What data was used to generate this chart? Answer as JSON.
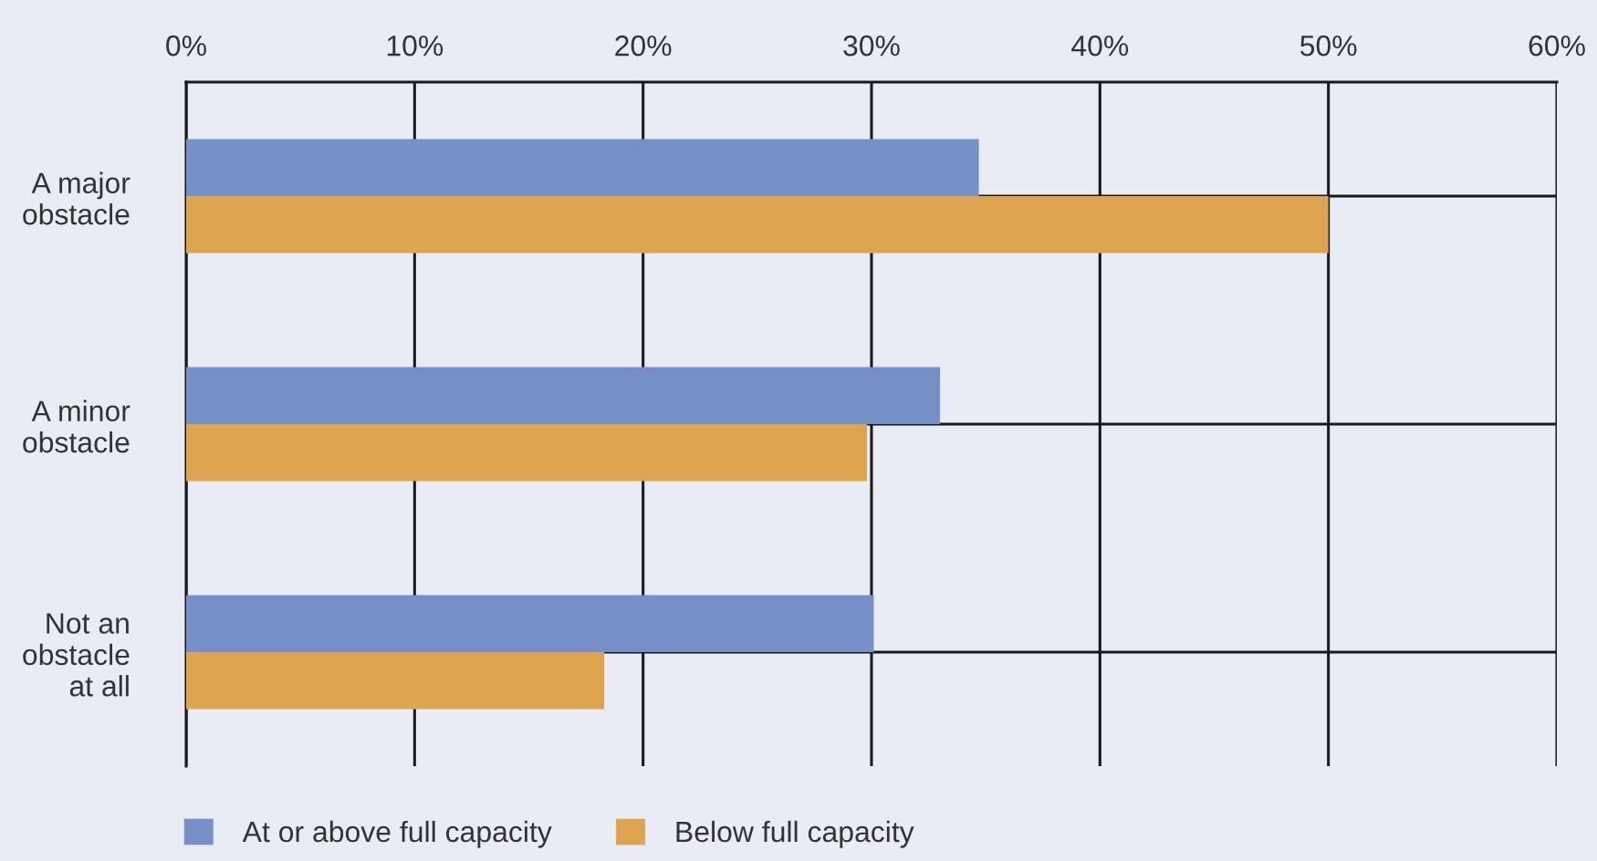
{
  "chart_data": {
    "type": "bar",
    "orientation": "horizontal",
    "categories": [
      "A major\nobstacle",
      "A minor\nobstacle",
      "Not an\nobstacle\nat all"
    ],
    "series": [
      {
        "name": "At or above full capacity",
        "color": "#7490c6",
        "values": [
          34.7,
          33.0,
          30.1
        ]
      },
      {
        "name": "Below full capacity",
        "color": "#dea450",
        "values": [
          50.0,
          29.8,
          18.3
        ]
      }
    ],
    "xlim": [
      0,
      60
    ],
    "xticks": [
      {
        "value": 0,
        "label": "0%"
      },
      {
        "value": 10,
        "label": "10%"
      },
      {
        "value": 20,
        "label": "20%"
      },
      {
        "value": 30,
        "label": "30%"
      },
      {
        "value": 40,
        "label": "40%"
      },
      {
        "value": 50,
        "label": "50%"
      },
      {
        "value": 60,
        "label": "60%"
      }
    ],
    "grid": true,
    "legend": "bottom"
  }
}
